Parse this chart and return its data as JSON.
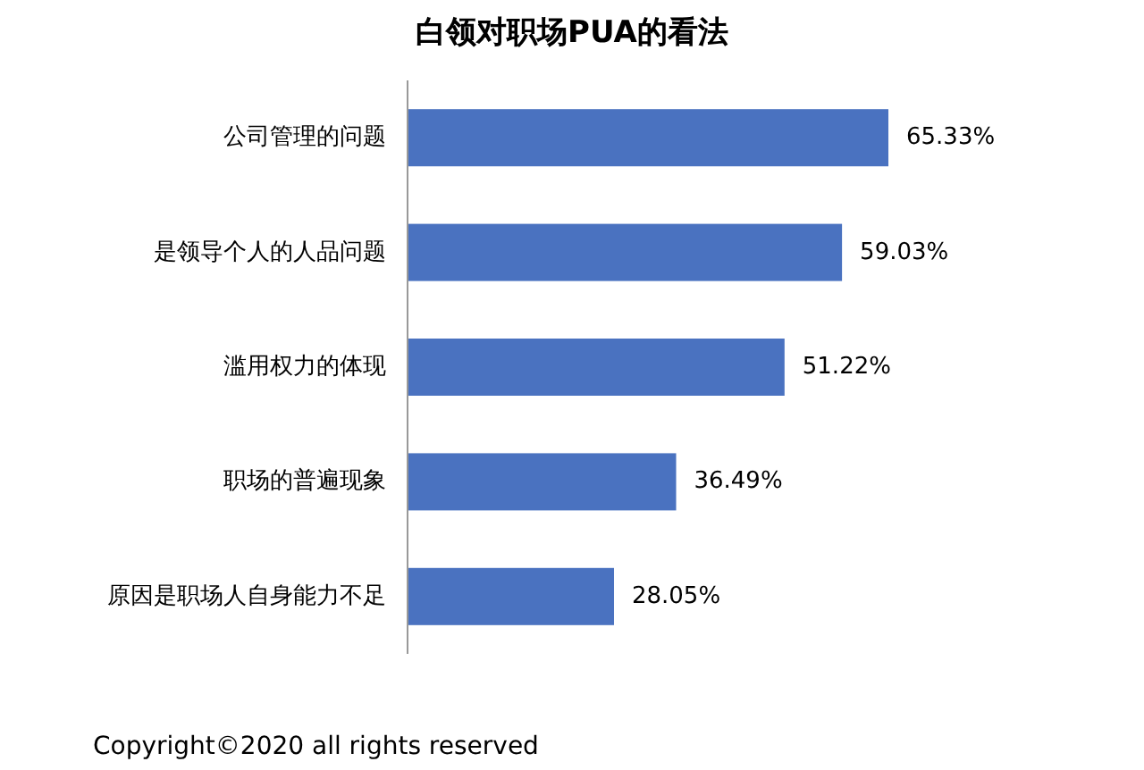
{
  "chart_data": {
    "type": "bar",
    "orientation": "horizontal",
    "title": "白领对职场PUA的看法",
    "categories": [
      "公司管理的问题",
      "是领导个人的人品问题",
      "滥用权力的体现",
      "职场的普遍现象",
      "原因是职场人自身能力不足"
    ],
    "values": [
      65.33,
      59.03,
      51.22,
      36.49,
      28.05
    ],
    "value_labels": [
      "65.33%",
      "59.03%",
      "51.22%",
      "36.49%",
      "28.05%"
    ],
    "color": "#4a72c0",
    "annotations": [
      "Copyright©2020 all rights reserved"
    ]
  }
}
